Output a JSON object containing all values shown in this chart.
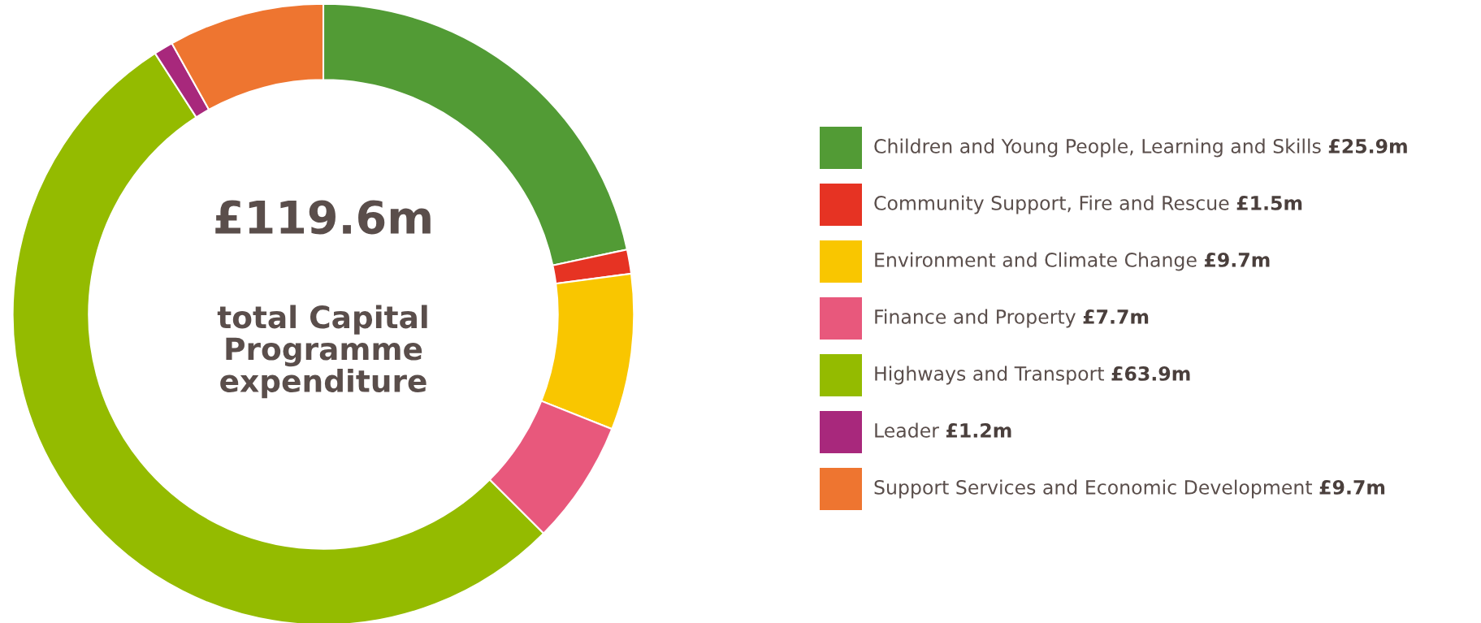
{
  "chart_data": {
    "type": "donut",
    "categories": [
      "Children and Young People, Learning and Skills",
      "Community Support, Fire and Rescue",
      "Environment and Climate Change",
      "Finance and Property",
      "Highways and Transport",
      "Leader",
      "Support Services and Economic Development"
    ],
    "values": [
      25.9,
      1.5,
      9.7,
      7.7,
      63.9,
      1.2,
      9.7
    ],
    "value_labels": [
      "£25.9m",
      "£1.5m",
      "£9.7m",
      "£7.7m",
      "£63.9m",
      "£1.2m",
      "£9.7m"
    ],
    "colors": [
      "#529b35",
      "#e63323",
      "#f9c600",
      "#e8587c",
      "#94bb00",
      "#a8287c",
      "#ee7530"
    ],
    "annotations": [
      "£119.6m",
      "total Capital Programme expenditure"
    ],
    "legend": "right"
  }
}
